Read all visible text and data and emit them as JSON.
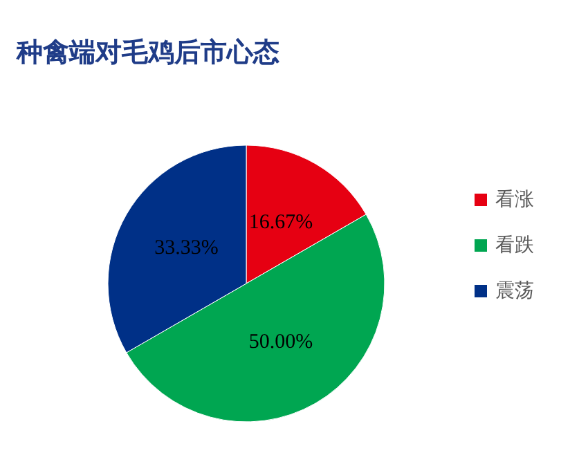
{
  "chart_data": {
    "type": "pie",
    "title": "种禽端对毛鸡后市心态",
    "categories": [
      "看涨",
      "看跌",
      "震荡"
    ],
    "values": [
      16.67,
      50,
      33.33
    ],
    "colors": [
      "#e60012",
      "#00a651",
      "#003087"
    ],
    "value_labels": [
      "16.67%",
      "50.00%",
      "33.33%"
    ],
    "legend": "right"
  }
}
